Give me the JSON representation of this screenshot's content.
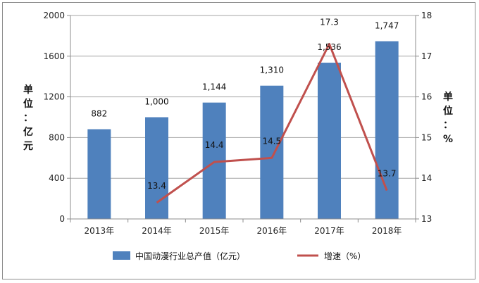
{
  "chart_data": {
    "type": "bar+line",
    "categories": [
      "2013年",
      "2014年",
      "2015年",
      "2016年",
      "2017年",
      "2018年"
    ],
    "series": [
      {
        "name": "中国动漫行业总产值（亿元）",
        "type": "bar",
        "axis": "left",
        "color": "#4f81bd",
        "values": [
          882,
          1000,
          1144,
          1310,
          1536,
          1747
        ],
        "labels": [
          "882",
          "1,000",
          "1,144",
          "1,310",
          "1,536",
          "1,747"
        ]
      },
      {
        "name": "增速（%）",
        "type": "line",
        "axis": "right",
        "color": "#c0504d",
        "values": [
          null,
          13.4,
          14.4,
          14.5,
          17.3,
          13.7
        ],
        "labels": [
          "",
          "13.4",
          "14.4",
          "14.5",
          "17.3",
          "13.7"
        ]
      }
    ],
    "y_left": {
      "label": "单位：亿元",
      "ylim": [
        0,
        2000
      ],
      "ticks": [
        0,
        400,
        800,
        1200,
        1600,
        2000
      ]
    },
    "y_right": {
      "label": "单位：%",
      "ylim": [
        13,
        18
      ],
      "ticks": [
        13,
        14,
        15,
        16,
        17,
        18
      ]
    },
    "grid": true,
    "legend_position": "bottom"
  }
}
